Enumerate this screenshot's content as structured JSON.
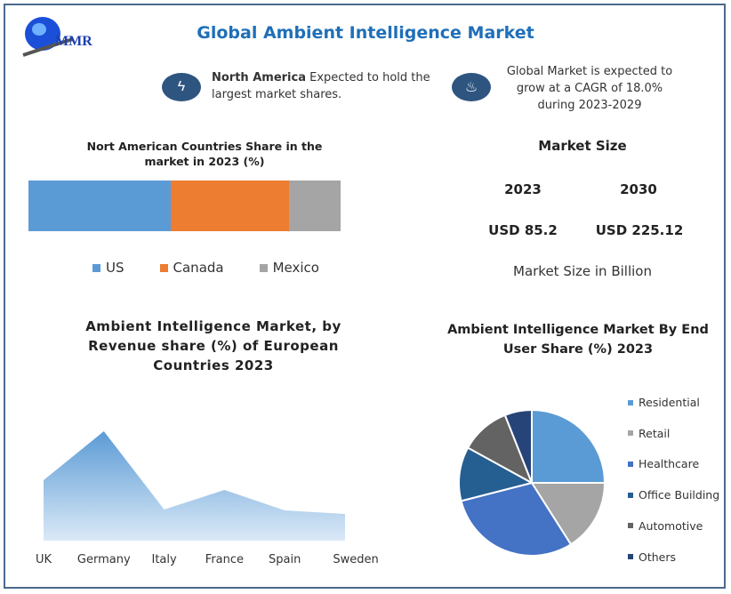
{
  "header": {
    "title": "Global Ambient Intelligence Market",
    "logo_text": "MMR"
  },
  "highlights": [
    {
      "icon": "lightning-icon",
      "bold": "North America",
      "text": " Expected to hold the largest market shares."
    },
    {
      "icon": "flame-icon",
      "text": "Global Market is expected to grow at a CAGR of 18.0% during 2023-2029"
    }
  ],
  "market_size": {
    "title": "Market Size",
    "years": [
      "2023",
      "2030"
    ],
    "values": [
      "USD 85.2",
      "USD 225.12"
    ],
    "note": "Market Size in Billion"
  },
  "colors": {
    "us": "#5b9bd5",
    "canada": "#ed7d31",
    "mexico": "#a5a5a5",
    "area": "#5b9bd5"
  },
  "chart_data": [
    {
      "type": "bar",
      "stacked": true,
      "title": "Nort American Countries Share in the market in 2023 (%)",
      "categories": [
        "US",
        "Canada",
        "Mexico"
      ],
      "values": [
        45.6,
        37.9,
        16.5
      ],
      "legend": "bottom"
    },
    {
      "type": "area",
      "title": "Ambient Intelligence Market, by Revenue share (%) of European Countries 2023",
      "categories": [
        "UK",
        "Germany",
        "Italy",
        "France",
        "Spain",
        "Sweden"
      ],
      "values": [
        68,
        123,
        35,
        57,
        34,
        30
      ],
      "ylim": [
        0,
        130
      ]
    },
    {
      "type": "pie",
      "title": "Ambient Intelligence Market By End User Share (%) 2023",
      "labels": [
        "Residential",
        "Retail",
        "Healthcare",
        "Office Building",
        "Automotive",
        "Others"
      ],
      "values": [
        25,
        16,
        30,
        12,
        11,
        6
      ],
      "colors": [
        "#5b9bd5",
        "#a5a5a5",
        "#4472c4",
        "#255e91",
        "#636363",
        "#264478"
      ],
      "legend": "right"
    }
  ]
}
